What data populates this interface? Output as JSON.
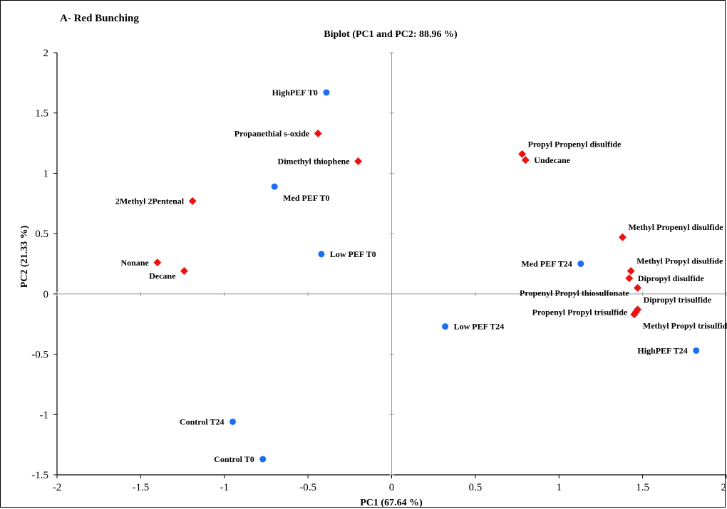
{
  "chart_data": {
    "type": "scatter",
    "panel_label": "A- Red Bunching",
    "title": "Biplot (PC1 and PC2: 88.96 %)",
    "xlabel": "PC1 (67.64 %)",
    "ylabel": "PC2 (21.33 %)",
    "xlim": [
      -2,
      2
    ],
    "ylim": [
      -1.5,
      2
    ],
    "xticks": [
      {
        "value": -2,
        "label": "-2"
      },
      {
        "value": -1.5,
        "label": "-1.5"
      },
      {
        "value": -1,
        "label": "-1"
      },
      {
        "value": -0.5,
        "label": "-0.5"
      },
      {
        "value": 0,
        "label": "0"
      },
      {
        "value": 0.5,
        "label": "0.5"
      },
      {
        "value": 1,
        "label": "1"
      },
      {
        "value": 1.5,
        "label": "1.5"
      },
      {
        "value": 2,
        "label": "2"
      }
    ],
    "yticks": [
      {
        "value": -1.5,
        "label": "-1.5"
      },
      {
        "value": -1,
        "label": "-1"
      },
      {
        "value": -0.5,
        "label": "-0.5"
      },
      {
        "value": 0,
        "label": "0"
      },
      {
        "value": 0.5,
        "label": "0.5"
      },
      {
        "value": 1,
        "label": "1"
      },
      {
        "value": 1.5,
        "label": "1.5"
      },
      {
        "value": 2,
        "label": "2"
      }
    ],
    "grid": false,
    "reference_lines": {
      "x": 0,
      "y": 0
    },
    "colors": {
      "observations": "#1a6ff2",
      "variables": "#ee1111",
      "axes": "#000000",
      "reference": "#999999"
    },
    "series": [
      {
        "kind": "observations",
        "marker": "circle",
        "points": [
          {
            "label": "HighPEF T0",
            "x": -0.39,
            "y": 1.67,
            "anchor": "left"
          },
          {
            "label": "Med PEF T0",
            "x": -0.7,
            "y": 0.89,
            "anchor": "below-right"
          },
          {
            "label": "Low PEF T0",
            "x": -0.42,
            "y": 0.33,
            "anchor": "right"
          },
          {
            "label": "Med PEF T24",
            "x": 1.13,
            "y": 0.25,
            "anchor": "left"
          },
          {
            "label": "Low PEF T24",
            "x": 0.32,
            "y": -0.27,
            "anchor": "right"
          },
          {
            "label": "HighPEF T24",
            "x": 1.82,
            "y": -0.47,
            "anchor": "left"
          },
          {
            "label": "Control T24",
            "x": -0.95,
            "y": -1.06,
            "anchor": "left"
          },
          {
            "label": "Control T0",
            "x": -0.77,
            "y": -1.37,
            "anchor": "left"
          }
        ]
      },
      {
        "kind": "variables",
        "marker": "diamond",
        "points": [
          {
            "label": "Propanethial s-oxide",
            "x": -0.44,
            "y": 1.33,
            "anchor": "left"
          },
          {
            "label": "Dimethyl thiophene",
            "x": -0.2,
            "y": 1.1,
            "anchor": "left"
          },
          {
            "label": "2Methyl 2Pentenal",
            "x": -1.19,
            "y": 0.77,
            "anchor": "left"
          },
          {
            "label": "Nonane",
            "x": -1.4,
            "y": 0.26,
            "anchor": "left"
          },
          {
            "label": "Decane",
            "x": -1.24,
            "y": 0.19,
            "anchor": "below-left"
          },
          {
            "label": "Propyl Propenyl disulfide",
            "x": 0.78,
            "y": 1.16,
            "anchor": "above-right"
          },
          {
            "label": "Undecane",
            "x": 0.8,
            "y": 1.11,
            "anchor": "right"
          },
          {
            "label": "Methyl Propenyl disulfide",
            "x": 1.38,
            "y": 0.47,
            "anchor": "above-right"
          },
          {
            "label": "Methyl Propyl disulfide",
            "x": 1.43,
            "y": 0.19,
            "anchor": "above-right"
          },
          {
            "label": "Dipropyl disulfide",
            "x": 1.42,
            "y": 0.13,
            "anchor": "right"
          },
          {
            "label": "Propenyl Propyl thiosulfonate",
            "x": 1.47,
            "y": 0.05,
            "anchor": "below-left"
          },
          {
            "label": "Dipropyl trisulfide",
            "x": 1.47,
            "y": -0.13,
            "anchor": "above-right"
          },
          {
            "label": "Propenyl Propyl trisulfide",
            "x": 1.46,
            "y": -0.15,
            "anchor": "left"
          },
          {
            "label": "Methyl Propyl trisulfide",
            "x": 1.45,
            "y": -0.17,
            "anchor": "below-right"
          }
        ]
      }
    ]
  }
}
